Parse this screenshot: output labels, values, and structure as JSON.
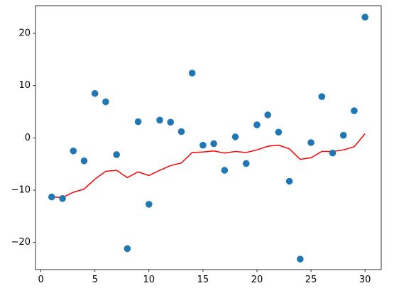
{
  "chart_data": {
    "type": "scatter",
    "title": "",
    "xlabel": "",
    "ylabel": "",
    "xlim": [
      -0.5,
      31.5
    ],
    "ylim": [
      -25.2,
      25.3
    ],
    "xticks": [
      0,
      5,
      10,
      15,
      20,
      25,
      30
    ],
    "yticks": [
      -20,
      -10,
      0,
      10,
      20
    ],
    "xtick_labels": [
      "0",
      "5",
      "10",
      "15",
      "20",
      "25",
      "30"
    ],
    "ytick_labels": [
      "−20",
      "−10",
      "0",
      "10",
      "20"
    ],
    "grid": false,
    "series": [
      {
        "kind": "scatter",
        "color": "#1f77b4",
        "x": [
          1,
          2,
          3,
          4,
          5,
          6,
          7,
          8,
          9,
          10,
          11,
          12,
          13,
          14,
          15,
          16,
          17,
          18,
          19,
          20,
          21,
          22,
          23,
          24,
          25,
          26,
          27,
          28,
          29,
          30
        ],
        "y": [
          -11.3,
          -11.6,
          -2.5,
          -4.4,
          8.5,
          6.9,
          -3.2,
          -21.2,
          3.1,
          -12.7,
          3.4,
          3.0,
          1.2,
          12.4,
          -1.4,
          -1.1,
          -6.2,
          0.2,
          -4.9,
          2.5,
          4.4,
          1.1,
          -8.3,
          -23.2,
          -0.9,
          7.9,
          -2.9,
          0.5,
          5.2,
          23.1
        ]
      },
      {
        "kind": "line",
        "color": "#ff0000",
        "x": [
          1,
          2,
          3,
          4,
          5,
          6,
          7,
          8,
          9,
          10,
          11,
          12,
          13,
          14,
          15,
          16,
          17,
          18,
          19,
          20,
          21,
          22,
          23,
          24,
          25,
          26,
          27,
          28,
          29,
          30
        ],
        "y": [
          -11.3,
          -11.4,
          -10.4,
          -9.8,
          -7.9,
          -6.4,
          -6.2,
          -7.6,
          -6.5,
          -7.2,
          -6.2,
          -5.3,
          -4.8,
          -2.8,
          -2.7,
          -2.5,
          -2.9,
          -2.6,
          -2.8,
          -2.3,
          -1.6,
          -1.4,
          -2.1,
          -4.1,
          -3.8,
          -2.6,
          -2.6,
          -2.3,
          -1.7,
          0.8
        ]
      }
    ]
  }
}
